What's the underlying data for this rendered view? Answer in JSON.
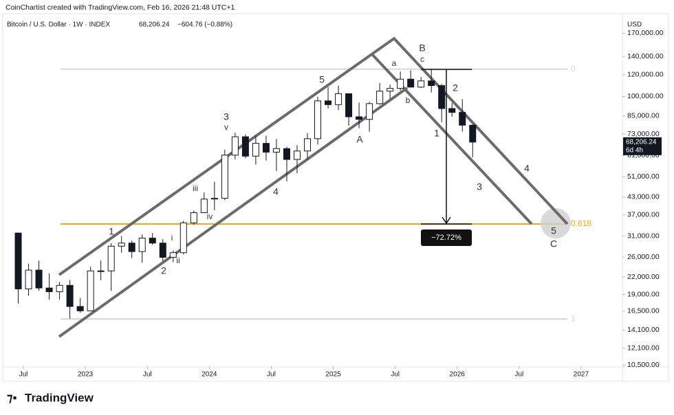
{
  "header": {
    "credit": "CoinChartist created with TradingView.com, Feb 16, 2026 21:48 UTC+1",
    "symbol": "Bitcoin / U.S. Dollar · 1W · INDEX",
    "last_price": "68,206.24",
    "change": "−604.76 (−0.88%)",
    "currency": "USD",
    "countdown": "6d 4h",
    "brand": "TradingView"
  },
  "measure_label": "−72.72%",
  "wave_labels": [
    "1",
    "2",
    "3",
    "v",
    "4",
    "5",
    "i",
    "ii",
    "iii",
    "iv",
    "a",
    "b",
    "c",
    "B",
    "A",
    "1",
    "2",
    "3",
    "4",
    "5",
    "C"
  ],
  "chart_data": {
    "type": "candlestick",
    "x": [
      "2022-06",
      "2022-07",
      "2022-08",
      "2022-09",
      "2022-10",
      "2022-11",
      "2022-12",
      "2023-01",
      "2023-02",
      "2023-03",
      "2023-04",
      "2023-05",
      "2023-06",
      "2023-07",
      "2023-08",
      "2023-09",
      "2023-10",
      "2023-11",
      "2023-12",
      "2024-01",
      "2024-02",
      "2024-03",
      "2024-04",
      "2024-05",
      "2024-06",
      "2024-07",
      "2024-08",
      "2024-09",
      "2024-10",
      "2024-11",
      "2024-12",
      "2025-01",
      "2025-02",
      "2025-03",
      "2025-04",
      "2025-05",
      "2025-06",
      "2025-07",
      "2025-08",
      "2025-09",
      "2025-10",
      "2025-11",
      "2025-12",
      "2026-01",
      "2026-02"
    ],
    "open": [
      31800,
      19900,
      23300,
      20050,
      19430,
      20500,
      17170,
      16550,
      23140,
      23150,
      28480,
      29230,
      27220,
      30470,
      29230,
      25940,
      26970,
      34640,
      37720,
      42280,
      42580,
      61130,
      71330,
      60640,
      67500,
      62700,
      64600,
      58970,
      63300,
      70200,
      96400,
      93400,
      102400,
      84350,
      82550,
      94200,
      104600,
      107100,
      115700,
      108200,
      114000,
      109600,
      90400,
      87500,
      78600
    ],
    "high": [
      31900,
      24600,
      25200,
      22700,
      21100,
      21450,
      18400,
      23950,
      25250,
      29200,
      31000,
      29850,
      31400,
      31800,
      30200,
      27500,
      35200,
      38400,
      44700,
      48900,
      64000,
      73750,
      72700,
      71950,
      72000,
      70000,
      65600,
      66500,
      73600,
      99800,
      108300,
      109500,
      102500,
      95000,
      95700,
      112000,
      110500,
      123200,
      124500,
      117900,
      126200,
      111200,
      94600,
      97900,
      79000
    ],
    "low": [
      17600,
      18800,
      19600,
      18200,
      18200,
      15500,
      16300,
      16500,
      21400,
      19550,
      26950,
      25800,
      24800,
      28850,
      25150,
      24900,
      26550,
      34100,
      37600,
      38500,
      41900,
      59000,
      59600,
      56500,
      58400,
      53500,
      49000,
      52550,
      58900,
      66800,
      90500,
      89200,
      78200,
      76600,
      74400,
      93300,
      98200,
      105100,
      108000,
      107300,
      103500,
      80600,
      84400,
      74500,
      60000
    ],
    "close": [
      19900,
      23300,
      20050,
      19430,
      20500,
      17170,
      16550,
      23140,
      23150,
      28480,
      29230,
      27220,
      30470,
      29230,
      25940,
      26970,
      34640,
      37720,
      42280,
      42580,
      61130,
      71330,
      60640,
      67500,
      62700,
      64600,
      58970,
      63300,
      70200,
      96400,
      93400,
      102400,
      84350,
      82550,
      94200,
      104600,
      107100,
      115700,
      108200,
      114000,
      109600,
      90400,
      87500,
      78600,
      68206.24
    ],
    "up_color": "#ffffff",
    "down_color": "#131722",
    "wick_color": "#131722",
    "log_scale": true,
    "ylim": [
      10400,
      198000
    ],
    "yticks": [
      {
        "value": 170000,
        "label": "170,000.00"
      },
      {
        "value": 140000,
        "label": "140,000.00"
      },
      {
        "value": 120000,
        "label": "120,000.00"
      },
      {
        "value": 100000,
        "label": "100,000.00"
      },
      {
        "value": 85000,
        "label": "85,000.00"
      },
      {
        "value": 73000,
        "label": "73,000.00"
      },
      {
        "value": 61000,
        "label": "61,000.00"
      },
      {
        "value": 51000,
        "label": "51,000.00"
      },
      {
        "value": 43000,
        "label": "43,000.00"
      },
      {
        "value": 37000,
        "label": "37,000.00"
      },
      {
        "value": 31000,
        "label": "31,000.00"
      },
      {
        "value": 26000,
        "label": "26,000.00"
      },
      {
        "value": 22000,
        "label": "22,000.00"
      },
      {
        "value": 19000,
        "label": "19,000.00"
      },
      {
        "value": 16500,
        "label": "16,500.00"
      },
      {
        "value": 14100,
        "label": "14,100.00"
      },
      {
        "value": 12100,
        "label": "12,100.00"
      },
      {
        "value": 10500,
        "label": "10,500.00"
      }
    ],
    "xlim": [
      "2022-05",
      "2027-05"
    ],
    "xticks": [
      {
        "value": "2022-07",
        "label": "Jul"
      },
      {
        "value": "2023-01",
        "label": "2023"
      },
      {
        "value": "2023-07",
        "label": "Jul"
      },
      {
        "value": "2024-01",
        "label": "2024"
      },
      {
        "value": "2024-07",
        "label": "Jul"
      },
      {
        "value": "2025-01",
        "label": "2025"
      },
      {
        "value": "2025-07",
        "label": "Jul"
      },
      {
        "value": "2026-01",
        "label": "2026"
      },
      {
        "value": "2026-07",
        "label": "Jul"
      },
      {
        "value": "2027-01",
        "label": "2027"
      }
    ],
    "fib_levels": [
      {
        "label": "0",
        "value": 125800,
        "color": "#d6d6d6"
      },
      {
        "label": "0.618",
        "value": 34300,
        "color": "#f5a623"
      },
      {
        "label": "1",
        "value": 15460,
        "color": "#d6d6d6"
      }
    ]
  }
}
